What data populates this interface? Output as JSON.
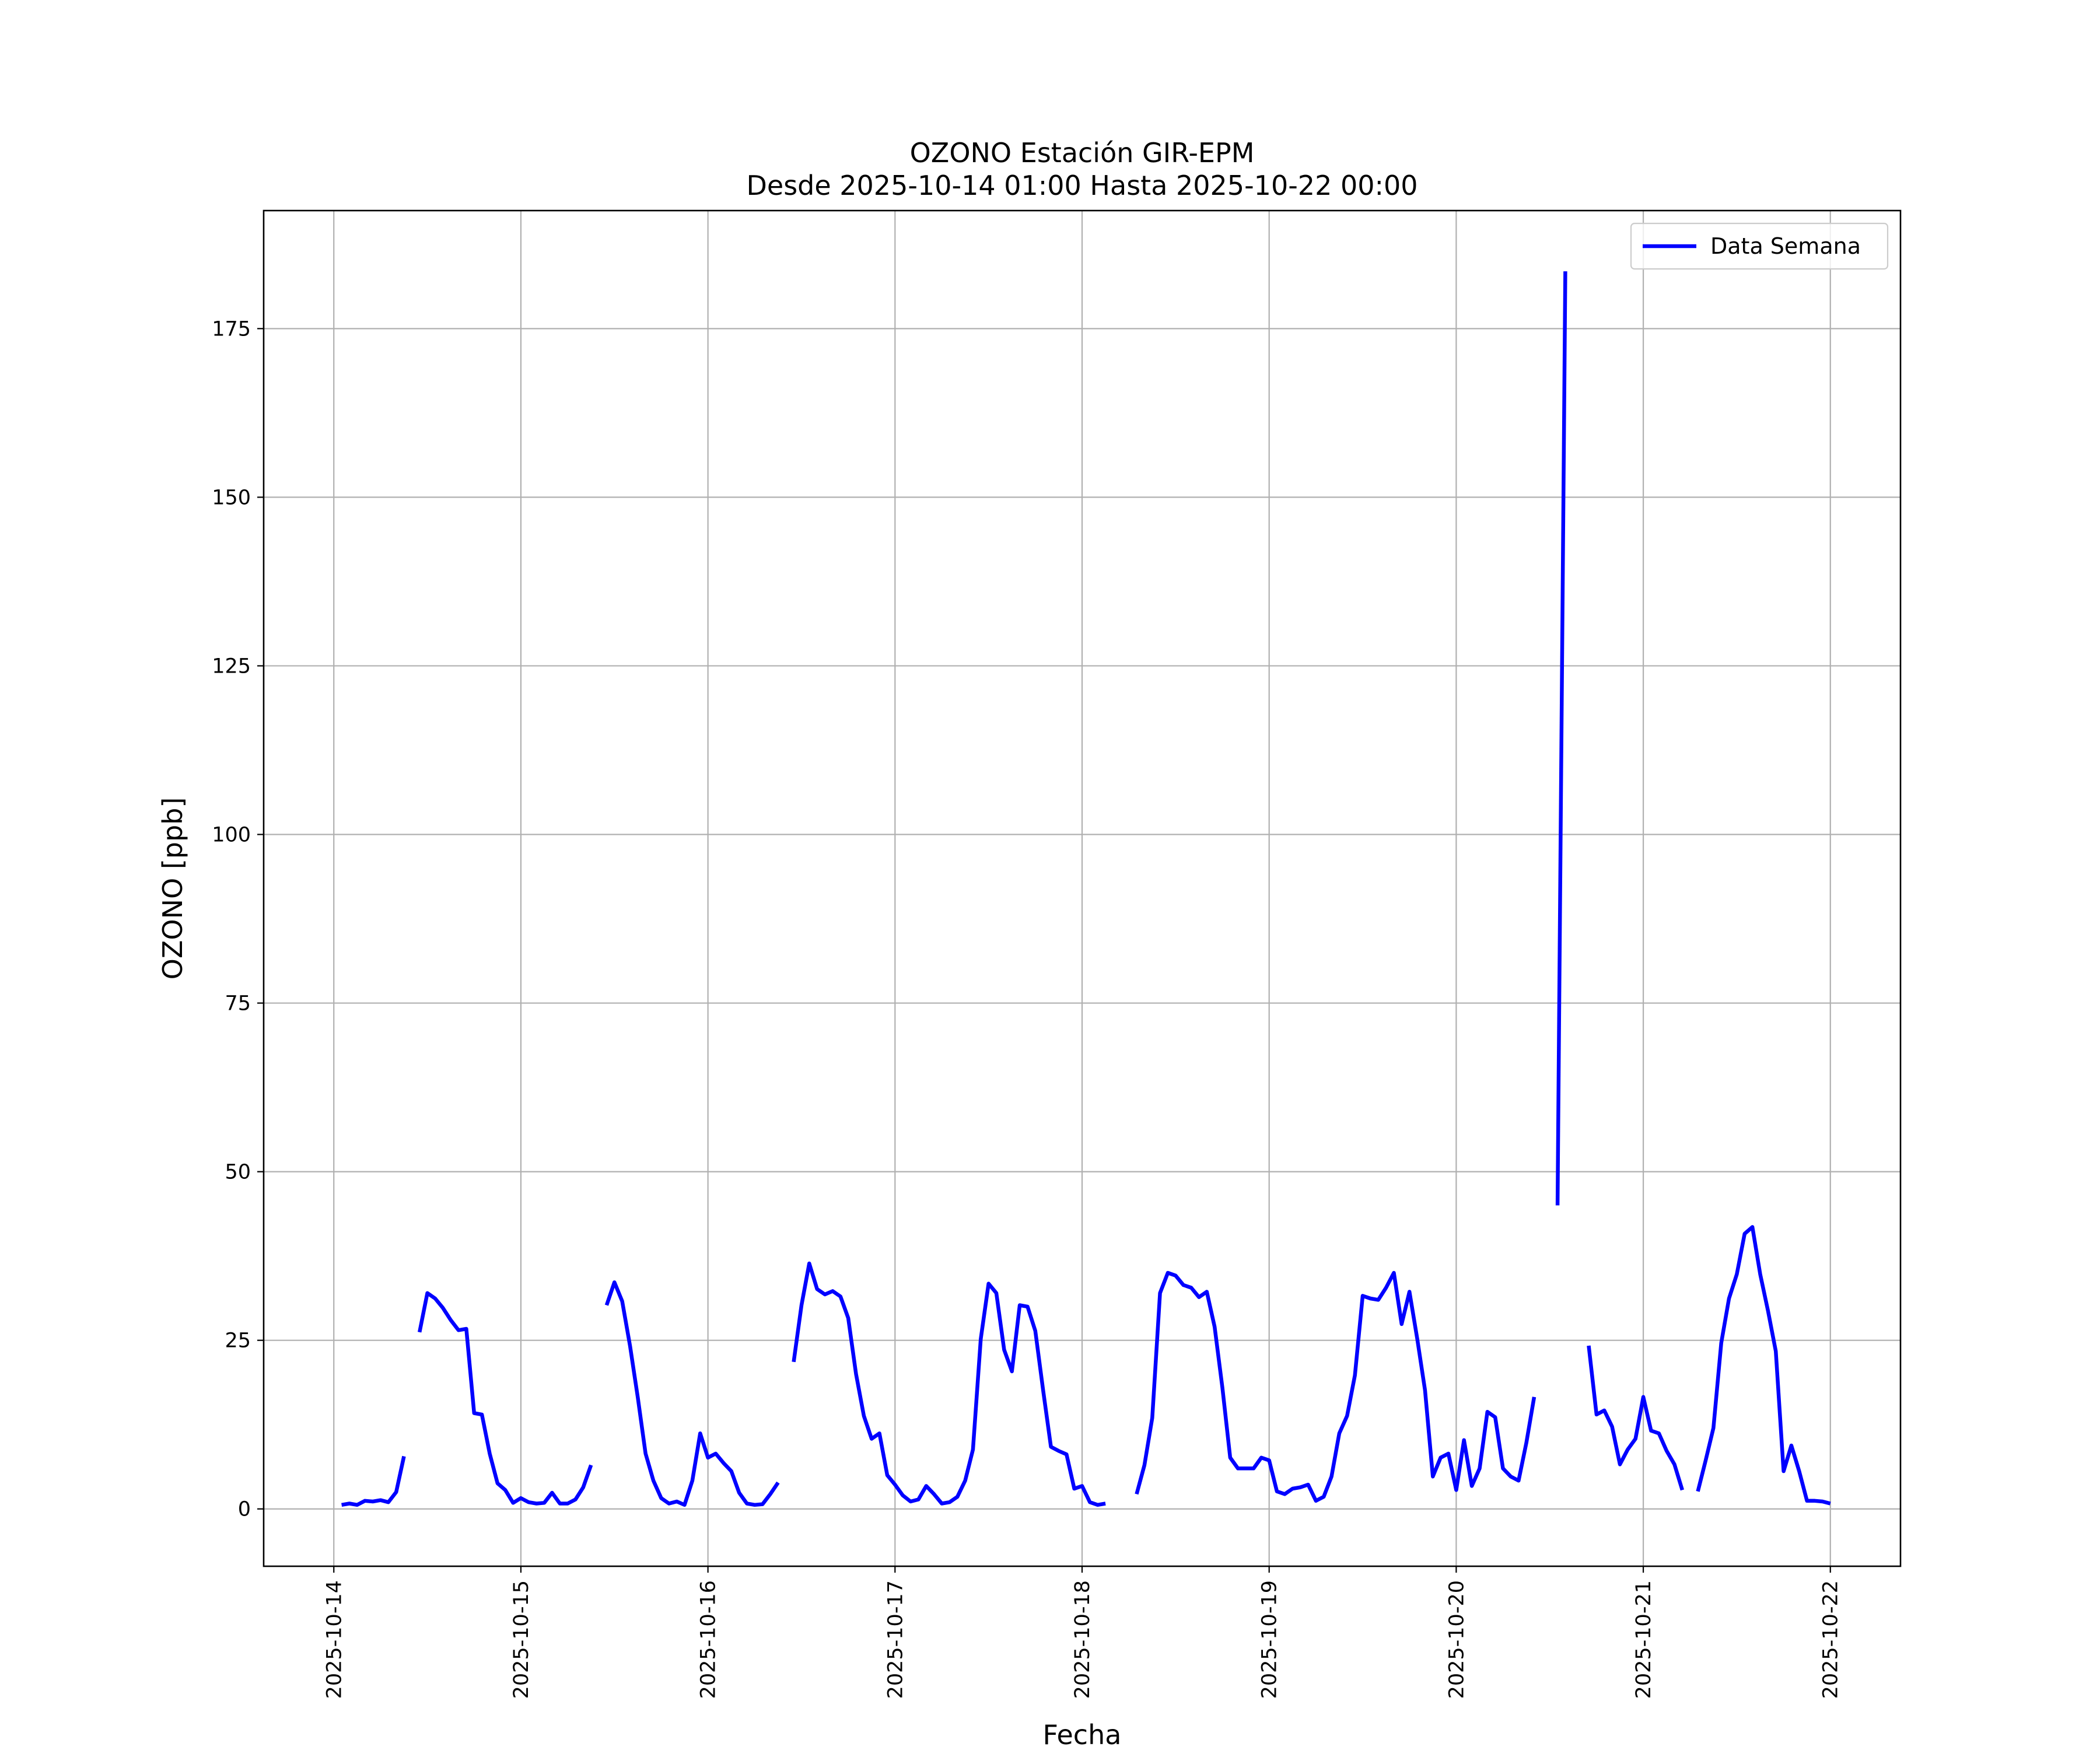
{
  "chart_data": {
    "type": "line",
    "title": "OZONO Estación GIR-EPM",
    "subtitle": "Desde 2025-10-14 01:00 Hasta 2025-10-22 00:00",
    "xlabel": "Fecha",
    "ylabel": "OZONO [ppb]",
    "ylim": [
      -8.5,
      192.5
    ],
    "xlim": [
      "2025-10-13 15:00",
      "2025-10-22 09:00"
    ],
    "yticks": [
      "0",
      "25",
      "50",
      "75",
      "100",
      "125",
      "150",
      "175"
    ],
    "xticks": [
      "2025-10-14",
      "2025-10-15",
      "2025-10-16",
      "2025-10-17",
      "2025-10-18",
      "2025-10-19",
      "2025-10-20",
      "2025-10-21",
      "2025-10-22"
    ],
    "grid": true,
    "legend": "top-right",
    "line_color": "#0000ff",
    "series": [
      {
        "name": "Data Semana",
        "segments": [
          [
            [
              "2025-10-14 01:00",
              0.6
            ],
            [
              "2025-10-14 02:00",
              0.8
            ],
            [
              "2025-10-14 03:00",
              0.6
            ],
            [
              "2025-10-14 04:00",
              1.2
            ],
            [
              "2025-10-14 05:00",
              1.1
            ],
            [
              "2025-10-14 06:00",
              1.3
            ],
            [
              "2025-10-14 07:00",
              1.0
            ],
            [
              "2025-10-14 08:00",
              2.5
            ],
            [
              "2025-10-14 09:00",
              7.8
            ]
          ],
          [
            [
              "2025-10-14 11:00",
              26.2
            ],
            [
              "2025-10-14 12:00",
              32.0
            ],
            [
              "2025-10-14 13:00",
              31.2
            ],
            [
              "2025-10-14 14:00",
              29.8
            ],
            [
              "2025-10-14 15:00",
              28.0
            ],
            [
              "2025-10-14 16:00",
              26.5
            ],
            [
              "2025-10-14 17:00",
              26.7
            ],
            [
              "2025-10-14 18:00",
              14.2
            ],
            [
              "2025-10-14 19:00",
              14.0
            ],
            [
              "2025-10-14 20:00",
              8.2
            ],
            [
              "2025-10-14 21:00",
              3.8
            ],
            [
              "2025-10-14 22:00",
              2.8
            ],
            [
              "2025-10-14 23:00",
              0.9
            ],
            [
              "2025-10-15 00:00",
              1.6
            ],
            [
              "2025-10-15 01:00",
              1.0
            ],
            [
              "2025-10-15 02:00",
              0.8
            ],
            [
              "2025-10-15 03:00",
              0.9
            ],
            [
              "2025-10-15 04:00",
              2.4
            ],
            [
              "2025-10-15 05:00",
              0.8
            ],
            [
              "2025-10-15 06:00",
              0.8
            ],
            [
              "2025-10-15 07:00",
              1.4
            ],
            [
              "2025-10-15 08:00",
              3.2
            ],
            [
              "2025-10-15 09:00",
              6.5
            ]
          ],
          [
            [
              "2025-10-15 11:00",
              30.2
            ],
            [
              "2025-10-15 12:00",
              33.6
            ],
            [
              "2025-10-15 13:00",
              30.8
            ],
            [
              "2025-10-15 14:00",
              24.2
            ],
            [
              "2025-10-15 15:00",
              16.5
            ],
            [
              "2025-10-15 16:00",
              8.2
            ],
            [
              "2025-10-15 17:00",
              4.2
            ],
            [
              "2025-10-15 18:00",
              1.6
            ],
            [
              "2025-10-15 19:00",
              0.8
            ],
            [
              "2025-10-15 20:00",
              1.1
            ],
            [
              "2025-10-15 21:00",
              0.6
            ],
            [
              "2025-10-15 22:00",
              4.2
            ],
            [
              "2025-10-15 23:00",
              11.2
            ],
            [
              "2025-10-16 00:00",
              7.6
            ],
            [
              "2025-10-16 01:00",
              8.2
            ],
            [
              "2025-10-16 02:00",
              6.8
            ],
            [
              "2025-10-16 03:00",
              5.6
            ],
            [
              "2025-10-16 04:00",
              2.4
            ],
            [
              "2025-10-16 05:00",
              0.8
            ],
            [
              "2025-10-16 06:00",
              0.6
            ],
            [
              "2025-10-16 07:00",
              0.7
            ],
            [
              "2025-10-16 08:00",
              2.2
            ],
            [
              "2025-10-16 09:00",
              3.9
            ]
          ],
          [
            [
              "2025-10-16 11:00",
              21.8
            ],
            [
              "2025-10-16 12:00",
              30.2
            ],
            [
              "2025-10-16 13:00",
              36.4
            ],
            [
              "2025-10-16 14:00",
              32.6
            ],
            [
              "2025-10-16 15:00",
              31.8
            ],
            [
              "2025-10-16 16:00",
              32.3
            ],
            [
              "2025-10-16 17:00",
              31.5
            ],
            [
              "2025-10-16 18:00",
              28.3
            ],
            [
              "2025-10-16 19:00",
              20.0
            ],
            [
              "2025-10-16 20:00",
              13.8
            ],
            [
              "2025-10-16 21:00",
              10.4
            ],
            [
              "2025-10-16 22:00",
              11.2
            ],
            [
              "2025-10-16 23:00",
              5.0
            ],
            [
              "2025-10-17 00:00",
              3.6
            ],
            [
              "2025-10-17 01:00",
              2.0
            ],
            [
              "2025-10-17 02:00",
              1.1
            ],
            [
              "2025-10-17 03:00",
              1.4
            ],
            [
              "2025-10-17 04:00",
              3.4
            ],
            [
              "2025-10-17 05:00",
              2.2
            ],
            [
              "2025-10-17 06:00",
              0.8
            ],
            [
              "2025-10-17 07:00",
              1.0
            ],
            [
              "2025-10-17 08:00",
              1.8
            ],
            [
              "2025-10-17 09:00",
              4.2
            ],
            [
              "2025-10-17 10:00",
              8.8
            ],
            [
              "2025-10-17 11:00",
              25.2
            ],
            [
              "2025-10-17 12:00",
              33.4
            ],
            [
              "2025-10-17 13:00",
              32.0
            ],
            [
              "2025-10-17 14:00",
              23.6
            ],
            [
              "2025-10-17 15:00",
              20.4
            ],
            [
              "2025-10-17 16:00",
              30.2
            ],
            [
              "2025-10-17 17:00",
              30.0
            ],
            [
              "2025-10-17 18:00",
              26.4
            ],
            [
              "2025-10-17 19:00",
              17.6
            ],
            [
              "2025-10-17 20:00",
              9.2
            ],
            [
              "2025-10-17 21:00",
              8.6
            ],
            [
              "2025-10-17 22:00",
              8.1
            ],
            [
              "2025-10-17 23:00",
              3.0
            ],
            [
              "2025-10-18 00:00",
              3.4
            ],
            [
              "2025-10-18 01:00",
              1.0
            ],
            [
              "2025-10-18 02:00",
              0.6
            ],
            [
              "2025-10-18 03:00",
              0.8
            ]
          ],
          [
            [
              "2025-10-18 07:00",
              2.2
            ],
            [
              "2025-10-18 08:00",
              6.5
            ],
            [
              "2025-10-18 09:00",
              13.5
            ],
            [
              "2025-10-18 10:00",
              32.0
            ],
            [
              "2025-10-18 11:00",
              35.0
            ],
            [
              "2025-10-18 12:00",
              34.6
            ],
            [
              "2025-10-18 13:00",
              33.2
            ],
            [
              "2025-10-18 14:00",
              32.8
            ],
            [
              "2025-10-18 15:00",
              31.4
            ],
            [
              "2025-10-18 16:00",
              32.2
            ],
            [
              "2025-10-18 17:00",
              27.0
            ],
            [
              "2025-10-18 18:00",
              18.0
            ],
            [
              "2025-10-18 19:00",
              7.6
            ],
            [
              "2025-10-18 20:00",
              6.0
            ],
            [
              "2025-10-18 21:00",
              6.0
            ],
            [
              "2025-10-18 22:00",
              6.0
            ],
            [
              "2025-10-18 23:00",
              7.6
            ],
            [
              "2025-10-19 00:00",
              7.2
            ],
            [
              "2025-10-19 01:00",
              2.6
            ],
            [
              "2025-10-19 02:00",
              2.2
            ],
            [
              "2025-10-19 03:00",
              3.0
            ],
            [
              "2025-10-19 04:00",
              3.2
            ],
            [
              "2025-10-19 05:00",
              3.6
            ],
            [
              "2025-10-19 06:00",
              1.2
            ],
            [
              "2025-10-19 07:00",
              1.8
            ],
            [
              "2025-10-19 08:00",
              4.8
            ],
            [
              "2025-10-19 09:00",
              11.2
            ],
            [
              "2025-10-19 10:00",
              13.8
            ],
            [
              "2025-10-19 11:00",
              19.8
            ],
            [
              "2025-10-19 12:00",
              31.6
            ],
            [
              "2025-10-19 13:00",
              31.2
            ],
            [
              "2025-10-19 14:00",
              31.0
            ],
            [
              "2025-10-19 15:00",
              32.8
            ],
            [
              "2025-10-19 16:00",
              35.0
            ],
            [
              "2025-10-19 17:00",
              27.4
            ],
            [
              "2025-10-19 18:00",
              32.2
            ],
            [
              "2025-10-19 19:00",
              25.2
            ],
            [
              "2025-10-19 20:00",
              17.6
            ],
            [
              "2025-10-19 21:00",
              4.8
            ],
            [
              "2025-10-19 22:00",
              7.6
            ],
            [
              "2025-10-19 23:00",
              8.2
            ],
            [
              "2025-10-20 00:00",
              2.8
            ],
            [
              "2025-10-20 01:00",
              10.2
            ],
            [
              "2025-10-20 02:00",
              3.4
            ],
            [
              "2025-10-20 03:00",
              6.0
            ],
            [
              "2025-10-20 04:00",
              14.4
            ],
            [
              "2025-10-20 05:00",
              13.6
            ],
            [
              "2025-10-20 06:00",
              6.0
            ],
            [
              "2025-10-20 07:00",
              4.8
            ],
            [
              "2025-10-20 08:00",
              4.2
            ],
            [
              "2025-10-20 09:00",
              9.8
            ],
            [
              "2025-10-20 10:00",
              16.6
            ]
          ],
          [
            [
              "2025-10-20 13:00",
              45.0
            ],
            [
              "2025-10-20 14:00",
              183.5
            ]
          ],
          [
            [
              "2025-10-20 17:00",
              24.2
            ],
            [
              "2025-10-20 18:00",
              14.0
            ],
            [
              "2025-10-20 19:00",
              14.6
            ],
            [
              "2025-10-20 20:00",
              12.2
            ],
            [
              "2025-10-20 21:00",
              6.6
            ],
            [
              "2025-10-20 22:00",
              8.8
            ],
            [
              "2025-10-20 23:00",
              10.4
            ],
            [
              "2025-10-21 00:00",
              16.6
            ],
            [
              "2025-10-21 01:00",
              11.6
            ],
            [
              "2025-10-21 02:00",
              11.2
            ],
            [
              "2025-10-21 03:00",
              8.6
            ],
            [
              "2025-10-21 04:00",
              6.6
            ],
            [
              "2025-10-21 05:00",
              2.8
            ]
          ],
          [
            [
              "2025-10-21 07:00",
              2.6
            ],
            [
              "2025-10-21 08:00",
              7.2
            ],
            [
              "2025-10-21 09:00",
              12.0
            ],
            [
              "2025-10-21 10:00",
              24.6
            ],
            [
              "2025-10-21 11:00",
              31.2
            ],
            [
              "2025-10-21 12:00",
              34.8
            ],
            [
              "2025-10-21 13:00",
              40.8
            ],
            [
              "2025-10-21 14:00",
              41.8
            ],
            [
              "2025-10-21 15:00",
              34.8
            ],
            [
              "2025-10-21 16:00",
              29.4
            ],
            [
              "2025-10-21 17:00",
              23.4
            ],
            [
              "2025-10-21 18:00",
              5.6
            ],
            [
              "2025-10-21 19:00",
              9.4
            ],
            [
              "2025-10-21 20:00",
              5.6
            ],
            [
              "2025-10-21 21:00",
              1.2
            ],
            [
              "2025-10-21 22:00",
              1.2
            ],
            [
              "2025-10-21 23:00",
              1.1
            ],
            [
              "2025-10-22 00:00",
              0.8
            ]
          ]
        ]
      }
    ]
  }
}
